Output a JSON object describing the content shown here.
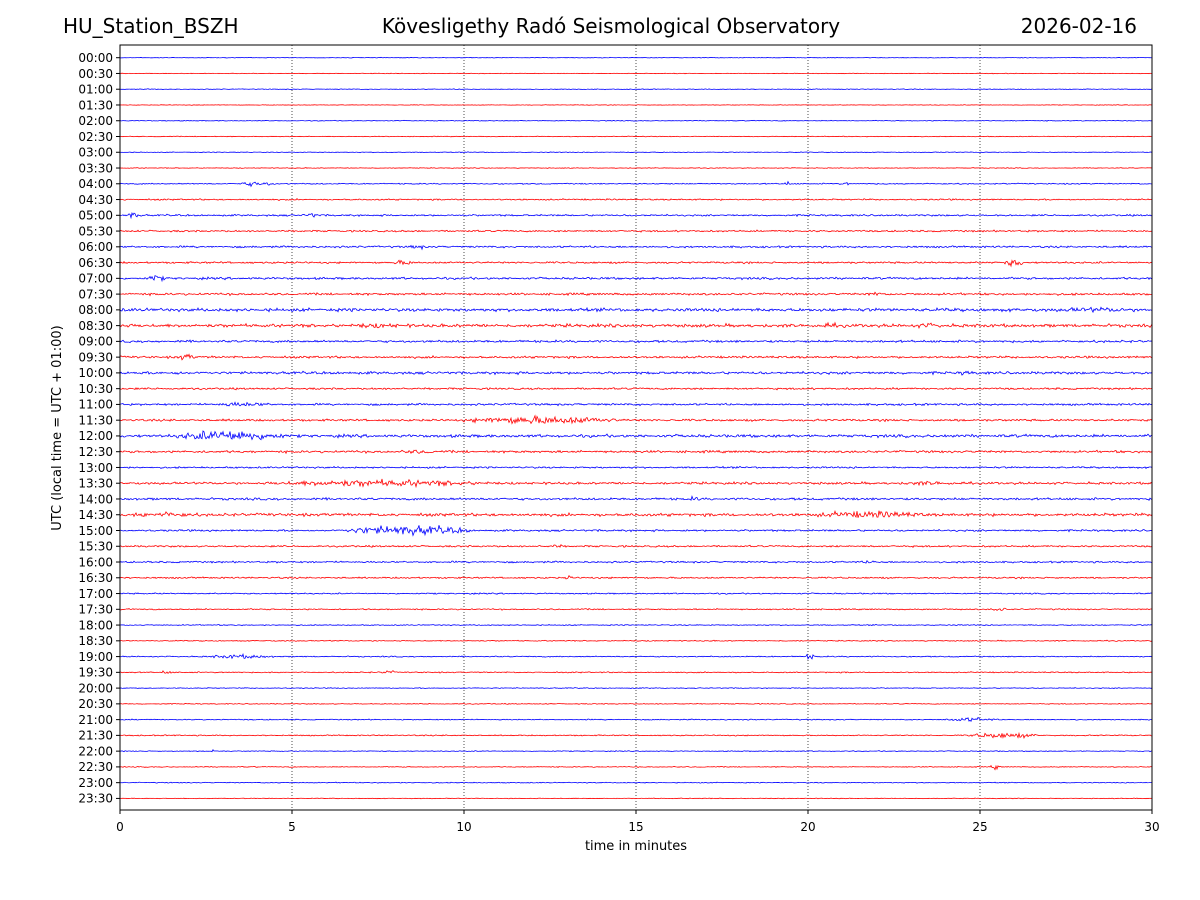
{
  "header": {
    "station": "HU_Station_BSZH",
    "observatory": "Kövesligethy Radó Seismological Observatory",
    "date": "2026-02-16"
  },
  "chart_data": {
    "type": "line",
    "title": "Kövesligethy Radó Seismological Observatory",
    "xlabel": "time in minutes",
    "ylabel": "UTC (local time = UTC + 01:00)",
    "xlim": [
      0,
      30
    ],
    "xticks": [
      0,
      5,
      10,
      15,
      20,
      25,
      30
    ],
    "xtick_labels": [
      "0",
      "5",
      "10",
      "15",
      "20",
      "25",
      "30"
    ],
    "grid": "vertical dotted at x ticks",
    "colors": {
      "even_traces": "#0000ff",
      "odd_traces": "#ff0000"
    },
    "trace_labels": [
      "00:00",
      "00:30",
      "01:00",
      "01:30",
      "02:00",
      "02:30",
      "03:00",
      "03:30",
      "04:00",
      "04:30",
      "05:00",
      "05:30",
      "06:00",
      "06:30",
      "07:00",
      "07:30",
      "08:00",
      "08:30",
      "09:00",
      "09:30",
      "10:00",
      "10:30",
      "11:00",
      "11:30",
      "12:00",
      "12:30",
      "13:00",
      "13:30",
      "14:00",
      "14:30",
      "15:00",
      "15:30",
      "16:00",
      "16:30",
      "17:00",
      "17:30",
      "18:00",
      "18:30",
      "19:00",
      "19:30",
      "20:00",
      "20:30",
      "21:00",
      "21:30",
      "22:00",
      "22:30",
      "23:00",
      "23:30"
    ],
    "noise_level": [
      0.4,
      0.4,
      0.5,
      0.4,
      0.5,
      0.5,
      0.5,
      0.5,
      0.8,
      1.0,
      1.2,
      1.2,
      1.3,
      1.3,
      1.5,
      1.5,
      2.2,
      2.2,
      1.6,
      1.5,
      1.8,
      1.3,
      1.4,
      1.5,
      2.0,
      1.6,
      1.2,
      1.6,
      1.6,
      2.0,
      1.3,
      1.2,
      1.2,
      1.1,
      0.9,
      0.9,
      0.7,
      0.7,
      0.8,
      0.8,
      0.6,
      0.6,
      0.7,
      0.8,
      0.6,
      0.6,
      0.6,
      0.5
    ],
    "bursts": [
      {
        "trace": 8,
        "start": 3.4,
        "end": 4.5,
        "amp": 3.5
      },
      {
        "trace": 8,
        "start": 19.2,
        "end": 19.5,
        "amp": 3.5
      },
      {
        "trace": 8,
        "start": 21.0,
        "end": 21.2,
        "amp": 3
      },
      {
        "trace": 10,
        "start": 0.2,
        "end": 0.6,
        "amp": 5
      },
      {
        "trace": 10,
        "start": 5.3,
        "end": 5.8,
        "amp": 3.5
      },
      {
        "trace": 12,
        "start": 8.4,
        "end": 8.9,
        "amp": 3.5
      },
      {
        "trace": 13,
        "start": 7.9,
        "end": 8.6,
        "amp": 3.5
      },
      {
        "trace": 13,
        "start": 25.7,
        "end": 26.3,
        "amp": 5.5
      },
      {
        "trace": 14,
        "start": 0.8,
        "end": 1.3,
        "amp": 5
      },
      {
        "trace": 15,
        "start": 21.7,
        "end": 22.2,
        "amp": 3.5
      },
      {
        "trace": 16,
        "start": 26.8,
        "end": 30.0,
        "amp": 3.5
      },
      {
        "trace": 17,
        "start": 6.5,
        "end": 8.5,
        "amp": 3.5
      },
      {
        "trace": 17,
        "start": 20.2,
        "end": 21.0,
        "amp": 3.5
      },
      {
        "trace": 17,
        "start": 22.8,
        "end": 24.3,
        "amp": 3.5
      },
      {
        "trace": 19,
        "start": 1.6,
        "end": 2.2,
        "amp": 4.5
      },
      {
        "trace": 20,
        "start": 1.5,
        "end": 1.9,
        "amp": 3
      },
      {
        "trace": 20,
        "start": 24.4,
        "end": 24.8,
        "amp": 4
      },
      {
        "trace": 22,
        "start": 2.6,
        "end": 4.5,
        "amp": 3.5
      },
      {
        "trace": 23,
        "start": 10.0,
        "end": 14.5,
        "amp": 6
      },
      {
        "trace": 24,
        "start": 1.6,
        "end": 4.8,
        "amp": 8
      },
      {
        "trace": 24,
        "start": 23.7,
        "end": 24.2,
        "amp": 3.5
      },
      {
        "trace": 25,
        "start": 8.0,
        "end": 9.3,
        "amp": 3
      },
      {
        "trace": 27,
        "start": 4.2,
        "end": 10.8,
        "amp": 5
      },
      {
        "trace": 27,
        "start": 22.5,
        "end": 24.5,
        "amp": 3
      },
      {
        "trace": 28,
        "start": 16.5,
        "end": 16.9,
        "amp": 3.5
      },
      {
        "trace": 29,
        "start": 0.0,
        "end": 2.5,
        "amp": 4
      },
      {
        "trace": 29,
        "start": 20.0,
        "end": 23.5,
        "amp": 5
      },
      {
        "trace": 30,
        "start": 6.5,
        "end": 10.2,
        "amp": 7
      },
      {
        "trace": 31,
        "start": 12.5,
        "end": 12.9,
        "amp": 3
      },
      {
        "trace": 32,
        "start": 21.6,
        "end": 22.0,
        "amp": 3
      },
      {
        "trace": 33,
        "start": 12.9,
        "end": 13.2,
        "amp": 3
      },
      {
        "trace": 35,
        "start": 25.3,
        "end": 25.8,
        "amp": 3
      },
      {
        "trace": 38,
        "start": 2.5,
        "end": 4.5,
        "amp": 3
      },
      {
        "trace": 38,
        "start": 19.8,
        "end": 20.3,
        "amp": 3.5
      },
      {
        "trace": 39,
        "start": 1.2,
        "end": 1.5,
        "amp": 3
      },
      {
        "trace": 39,
        "start": 7.6,
        "end": 8.0,
        "amp": 3
      },
      {
        "trace": 42,
        "start": 24.0,
        "end": 25.5,
        "amp": 3
      },
      {
        "trace": 43,
        "start": 24.6,
        "end": 26.7,
        "amp": 4
      },
      {
        "trace": 44,
        "start": 2.6,
        "end": 2.8,
        "amp": 3
      },
      {
        "trace": 45,
        "start": 25.3,
        "end": 25.6,
        "amp": 3.5
      }
    ]
  }
}
